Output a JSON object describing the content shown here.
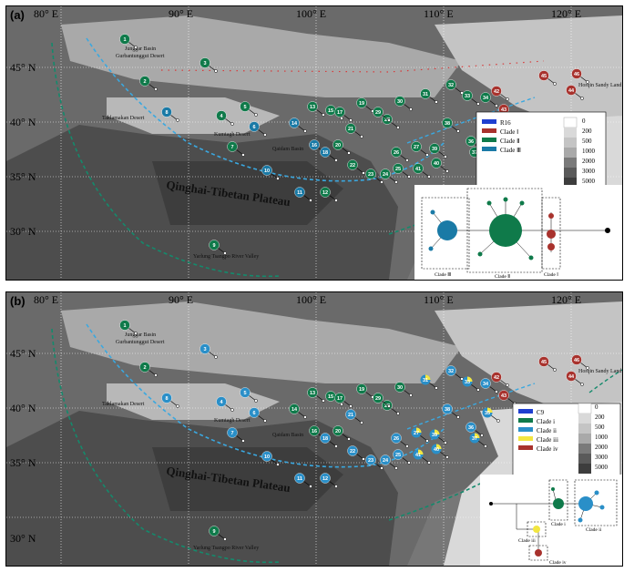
{
  "colors": {
    "clade1_red": "#a8322d",
    "clade2_green": "#0f7a4a",
    "clade3_teal": "#1a7aa6",
    "clade_blue": "#2a8fc8",
    "clade_iii_yellow": "#f2e640",
    "r16_blue": "#1f3fd0",
    "dash_blue": "#3aa8e0",
    "dash_green": "#148a6c",
    "dash_red": "#d83a3a"
  },
  "panel_a": {
    "label": "(a)",
    "lon_labels": [
      "80° E",
      "90° E",
      "100° E",
      "110° E",
      "120° E"
    ],
    "lat_labels": [
      "45° N",
      "40° N",
      "35° N",
      "30° N"
    ],
    "places": {
      "junggar": "Junggar Basin",
      "gurbantunggut": "Gurbantunggut Desert",
      "taklamakan": "Taklamakan Desert",
      "kumtagh": "Kumtagh Desert",
      "qaidam": "Qaidam Basin",
      "plateau": "Qinghai-Tibetan Plateau",
      "yarlung": "Yarlung Tsangpo River Valley",
      "horqin": "Horqin Sandy Land"
    },
    "legend": {
      "entries": [
        "R16",
        "Clade Ⅰ",
        "Clade Ⅱ",
        "Clade Ⅲ"
      ],
      "elevation": [
        "0",
        "200",
        "500",
        "1000",
        "2000",
        "3000",
        "5000"
      ]
    },
    "network": {
      "clade_labels": [
        "Clade Ⅲ",
        "Clade Ⅱ",
        "Clade Ⅰ"
      ]
    }
  },
  "panel_b": {
    "label": "(b)",
    "lon_labels": [
      "80° E",
      "90° E",
      "100° E",
      "110° E",
      "120° E"
    ],
    "lat_labels": [
      "45° N",
      "40° N",
      "35° N",
      "30° N"
    ],
    "places": {
      "junggar": "Junggar Basin",
      "gurbantunggut": "Gurbantunggut Desert",
      "taklamakan": "Taklamakan Desert",
      "kumtagh": "Kumtagh Desert",
      "qaidam": "Qaidam Basin",
      "plateau": "Qinghai-Tibetan Plateau",
      "yarlung": "Yarlung Tsangpo River Valley",
      "horqin": "Horqin Sandy Land"
    },
    "legend": {
      "entries": [
        "C9",
        "Clade i",
        "Clade ii",
        "Clade iii",
        "Clade iv"
      ],
      "elevation": [
        "0",
        "200",
        "500",
        "1000",
        "2000",
        "3000",
        "5000"
      ]
    },
    "network": {
      "clade_labels": [
        "Clade i",
        "Clade ii",
        "Clade iii",
        "Clade iv"
      ]
    }
  },
  "sites_a": [
    {
      "id": "1",
      "clade": "clade2_green"
    },
    {
      "id": "2",
      "clade": "clade2_green"
    },
    {
      "id": "3",
      "clade": "clade2_green"
    },
    {
      "id": "4",
      "clade": "clade2_green"
    },
    {
      "id": "5",
      "clade": "clade2_green"
    },
    {
      "id": "6",
      "clade": "clade3_teal"
    },
    {
      "id": "7",
      "clade": "clade2_green"
    },
    {
      "id": "8",
      "clade": "clade3_teal"
    },
    {
      "id": "9",
      "clade": "clade2_green"
    },
    {
      "id": "10",
      "clade": "clade3_teal"
    },
    {
      "id": "11",
      "clade": "clade3_teal"
    },
    {
      "id": "12",
      "clade": "clade2_green"
    },
    {
      "id": "13",
      "clade": "clade2_green"
    },
    {
      "id": "14",
      "clade": "clade3_teal"
    },
    {
      "id": "15",
      "clade": "clade2_green"
    },
    {
      "id": "16",
      "clade": "clade3_teal"
    },
    {
      "id": "17",
      "clade": "clade2_green"
    },
    {
      "id": "18",
      "clade": "clade3_teal"
    },
    {
      "id": "19",
      "clade": "clade2_green"
    },
    {
      "id": "20",
      "clade": "clade2_green"
    },
    {
      "id": "21",
      "clade": "clade2_green"
    },
    {
      "id": "22",
      "clade": "clade2_green"
    },
    {
      "id": "23",
      "clade": "clade2_green"
    },
    {
      "id": "24",
      "clade": "clade2_green"
    },
    {
      "id": "25",
      "clade": "clade2_green"
    },
    {
      "id": "26",
      "clade": "clade2_green"
    },
    {
      "id": "27",
      "clade": "clade2_green"
    },
    {
      "id": "28",
      "clade": "clade2_green"
    },
    {
      "id": "29",
      "clade": "clade2_green"
    },
    {
      "id": "30",
      "clade": "clade2_green"
    },
    {
      "id": "31",
      "clade": "clade2_green"
    },
    {
      "id": "32",
      "clade": "clade2_green"
    },
    {
      "id": "33",
      "clade": "clade2_green"
    },
    {
      "id": "34",
      "clade": "clade2_green"
    },
    {
      "id": "35",
      "clade": "clade2_green"
    },
    {
      "id": "36",
      "clade": "clade2_green"
    },
    {
      "id": "37",
      "clade": "clade2_green"
    },
    {
      "id": "38",
      "clade": "clade2_green"
    },
    {
      "id": "39",
      "clade": "clade2_green"
    },
    {
      "id": "40",
      "clade": "clade2_green"
    },
    {
      "id": "41",
      "clade": "clade2_green"
    },
    {
      "id": "42",
      "clade": "clade1_red"
    },
    {
      "id": "43",
      "clade": "clade1_red"
    },
    {
      "id": "44",
      "clade": "clade1_red"
    },
    {
      "id": "45",
      "clade": "clade1_red"
    },
    {
      "id": "46",
      "clade": "clade1_red"
    }
  ],
  "sites_b": [
    {
      "id": "1",
      "clade": "clade2_green"
    },
    {
      "id": "2",
      "clade": "clade2_green"
    },
    {
      "id": "3",
      "clade": "clade_blue"
    },
    {
      "id": "4",
      "clade": "clade_blue"
    },
    {
      "id": "5",
      "clade": "clade_blue"
    },
    {
      "id": "6",
      "clade": "clade_blue"
    },
    {
      "id": "7",
      "clade": "clade_blue"
    },
    {
      "id": "8",
      "clade": "clade_blue"
    },
    {
      "id": "9",
      "clade": "clade2_green"
    },
    {
      "id": "10",
      "clade": "clade_blue"
    },
    {
      "id": "11",
      "clade": "clade_blue"
    },
    {
      "id": "12",
      "clade": "clade_blue"
    },
    {
      "id": "13",
      "clade": "clade2_green"
    },
    {
      "id": "14",
      "clade": "clade2_green"
    },
    {
      "id": "15",
      "clade": "clade2_green"
    },
    {
      "id": "16",
      "clade": "clade2_green"
    },
    {
      "id": "17",
      "clade": "clade2_green"
    },
    {
      "id": "18",
      "clade": "clade_blue"
    },
    {
      "id": "19",
      "clade": "clade2_green"
    },
    {
      "id": "20",
      "clade": "clade2_green"
    },
    {
      "id": "21",
      "clade": "clade_blue"
    },
    {
      "id": "22",
      "clade": "clade_blue"
    },
    {
      "id": "23",
      "clade": "clade_blue"
    },
    {
      "id": "24",
      "clade": "clade_blue"
    },
    {
      "id": "25",
      "clade": "clade_blue"
    },
    {
      "id": "26",
      "clade": "clade_blue"
    },
    {
      "id": "27",
      "clade": "mixed"
    },
    {
      "id": "28",
      "clade": "clade2_green"
    },
    {
      "id": "29",
      "clade": "clade2_green"
    },
    {
      "id": "30",
      "clade": "clade2_green"
    },
    {
      "id": "31",
      "clade": "mixed"
    },
    {
      "id": "32",
      "clade": "clade_blue"
    },
    {
      "id": "33",
      "clade": "mixed"
    },
    {
      "id": "34",
      "clade": "clade_blue"
    },
    {
      "id": "35",
      "clade": "mixed"
    },
    {
      "id": "36",
      "clade": "clade_blue"
    },
    {
      "id": "37",
      "clade": "mixed"
    },
    {
      "id": "38",
      "clade": "clade_blue"
    },
    {
      "id": "39",
      "clade": "mixed"
    },
    {
      "id": "40",
      "clade": "mixed"
    },
    {
      "id": "41",
      "clade": "mixed"
    },
    {
      "id": "42",
      "clade": "clade1_red"
    },
    {
      "id": "43",
      "clade": "clade1_red"
    },
    {
      "id": "44",
      "clade": "clade1_red"
    },
    {
      "id": "45",
      "clade": "clade1_red"
    },
    {
      "id": "46",
      "clade": "clade1_red"
    }
  ]
}
